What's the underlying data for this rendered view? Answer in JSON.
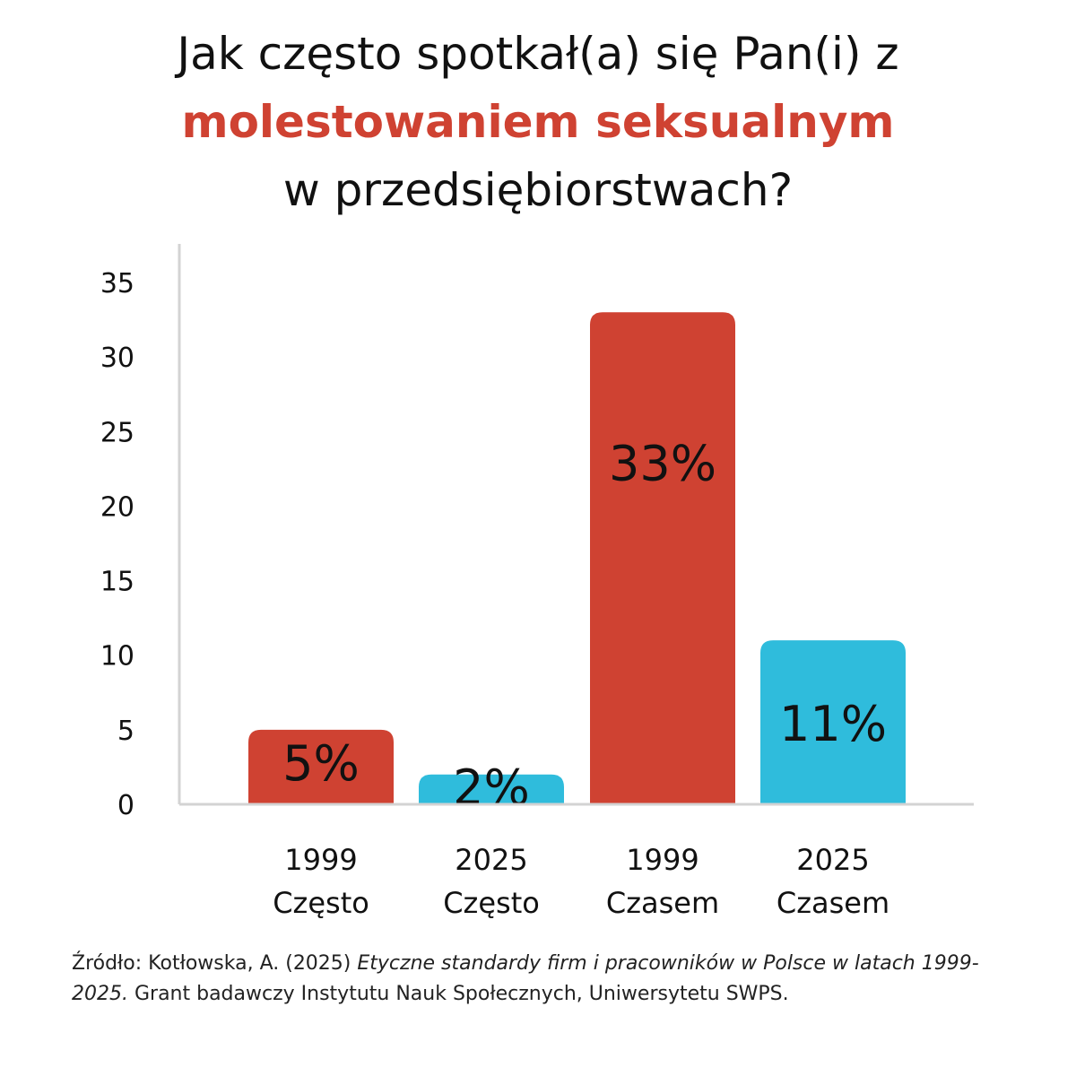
{
  "header": {
    "title_line1": "Jak często spotkał(a) się Pan(i) z",
    "title_line2": "molestowaniem seksualnym",
    "title_line3": "w przedsiębiorstwach?"
  },
  "colors": {
    "accent_red": "#cf4232",
    "accent_blue": "#2fbcdc",
    "axis": "#d3d3d3",
    "text": "#111111"
  },
  "chart_data": {
    "type": "bar",
    "categories": [
      {
        "year": "1999",
        "label": "Często"
      },
      {
        "year": "2025",
        "label": "Często"
      },
      {
        "year": "1999",
        "label": "Czasem"
      },
      {
        "year": "2025",
        "label": "Czasem"
      }
    ],
    "values": [
      5,
      2,
      33,
      11
    ],
    "data_labels": [
      "5%",
      "2%",
      "33%",
      "11%"
    ],
    "bar_colors": [
      "#cf4232",
      "#2fbcdc",
      "#cf4232",
      "#2fbcdc"
    ],
    "ylim": [
      0,
      35
    ],
    "yticks": [
      "0",
      "5",
      "10",
      "15",
      "20",
      "25",
      "30",
      "35"
    ],
    "grid": false,
    "title": "Jak często spotkał(a) się Pan(i) z molestowaniem seksualnym w przedsiębiorstwach?"
  },
  "source": {
    "prefix": "Źródło: Kotłowska, A. (2025) ",
    "title_italic": "Etyczne standardy firm i pracowników w Polsce w latach 1999-2025.",
    "suffix": " Grant badawczy Instytutu Nauk Społecznych, Uniwersytetu SWPS."
  }
}
